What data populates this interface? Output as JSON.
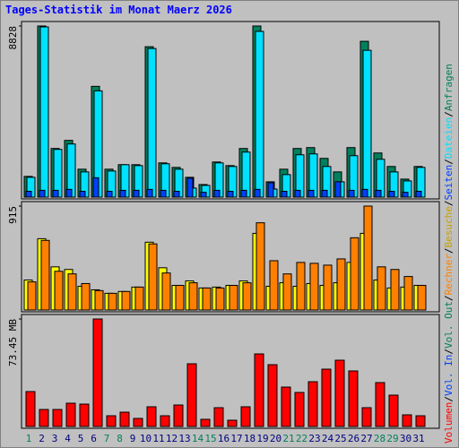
{
  "title": "Tages-Statistik im Monat Maerz 2026",
  "chart_data": [
    {
      "type": "bar",
      "series": [
        {
          "name": "Anfragen",
          "color": "#00805c",
          "values": [
            1069,
            8828,
            2509,
            2927,
            1440,
            5715,
            1440,
            1673,
            1673,
            7759,
            1766,
            1533,
            1022,
            650,
            1812,
            1626,
            2509,
            8828,
            790,
            1440,
            2509,
            2555,
            1998,
            1301,
            2555,
            8038,
            2277,
            1580,
            929,
            1580,
            null
          ]
        },
        {
          "name": "Dateien",
          "color": "#00e0ff",
          "values": [
            1022,
            8781,
            2463,
            2741,
            1301,
            5482,
            1347,
            1673,
            1626,
            7666,
            1719,
            1440,
            465,
            604,
            1766,
            1580,
            2323,
            8549,
            418,
            1162,
            2184,
            2230,
            1580,
            790,
            2137,
            7573,
            1951,
            1301,
            836,
            1533,
            null
          ]
        },
        {
          "name": "Seiten",
          "color": "#0040ff",
          "values": [
            300,
            350,
            350,
            400,
            300,
            1000,
            300,
            350,
            350,
            400,
            350,
            300,
            976,
            250,
            350,
            300,
            350,
            400,
            743,
            300,
            350,
            350,
            350,
            790,
            350,
            400,
            350,
            300,
            250,
            300,
            null
          ]
        }
      ],
      "ylim": [
        0,
        8828
      ],
      "yticks": [
        8828
      ]
    },
    {
      "type": "bar",
      "series": [
        {
          "name": "Besuche",
          "color": "#ffff00",
          "values": [
            264,
            628,
            380,
            357,
            209,
            178,
            147,
            163,
            202,
            597,
            372,
            217,
            256,
            194,
            202,
            217,
            256,
            675,
            209,
            240,
            209,
            233,
            217,
            240,
            419,
            675,
            264,
            194,
            202,
            217,
            null
          ]
        },
        {
          "name": "Rechner",
          "color": "#ff8000",
          "values": [
            248,
            613,
            341,
            318,
            233,
            171,
            147,
            163,
            202,
            582,
            326,
            217,
            240,
            194,
            194,
            217,
            240,
            768,
            434,
            318,
            419,
            411,
            395,
            450,
            636,
            915,
            380,
            357,
            295,
            217,
            null
          ]
        }
      ],
      "ylim": [
        0,
        915
      ],
      "yticks": [
        915
      ]
    },
    {
      "type": "bar",
      "categories": [
        "1",
        "2",
        "3",
        "4",
        "5",
        "6",
        "7",
        "8",
        "9",
        "10",
        "11",
        "12",
        "13",
        "14",
        "15",
        "16",
        "17",
        "18",
        "19",
        "20",
        "21",
        "22",
        "23",
        "24",
        "25",
        "26",
        "27",
        "28",
        "29",
        "30",
        "31"
      ],
      "weekend_index": [
        0,
        6,
        7,
        13,
        14,
        20,
        21,
        27,
        28
      ],
      "weekend_color": "#00805c",
      "weekday_color": "#000080",
      "series": [
        {
          "name": "Volumen",
          "color": "#ff0000",
          "values": [
            23.87,
            11.63,
            11.63,
            15.91,
            15.3,
            73.45,
            7.34,
            9.79,
            5.51,
            13.47,
            7.34,
            14.69,
            42.85,
            4.9,
            12.85,
            4.28,
            13.47,
            49.58,
            42.23,
            26.93,
            23.26,
            30.6,
            39.17,
            45.29,
            37.95,
            12.85,
            29.99,
            21.42,
            7.96,
            7.34,
            null
          ]
        }
      ],
      "legend_extra": [
        {
          "name": "Vol. In",
          "color": "#0040ff"
        },
        {
          "name": "Vol. Out",
          "color": "#00805c"
        }
      ],
      "separator": "/",
      "ylim": [
        0,
        73.45
      ],
      "yticks": [
        {
          "value": 73.45,
          "label": "73.45 MB"
        }
      ]
    }
  ]
}
